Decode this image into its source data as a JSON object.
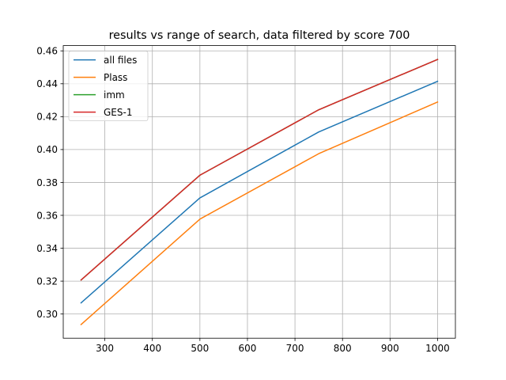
{
  "chart_data": {
    "type": "line",
    "title": "results vs range of search, data filtered by score 700",
    "xlabel": "",
    "ylabel": "",
    "x": [
      250,
      500,
      750,
      1000
    ],
    "xlim": [
      212.5,
      1037.5
    ],
    "ylim": [
      0.2853,
      0.4632
    ],
    "xticks": [
      300,
      400,
      500,
      600,
      700,
      800,
      900,
      1000
    ],
    "xtick_labels": [
      "300",
      "400",
      "500",
      "600",
      "700",
      "800",
      "900",
      "1000"
    ],
    "yticks": [
      0.3,
      0.32,
      0.34,
      0.36,
      0.38,
      0.4,
      0.42,
      0.44,
      0.46
    ],
    "ytick_labels": [
      "0.30",
      "0.32",
      "0.34",
      "0.36",
      "0.38",
      "0.40",
      "0.42",
      "0.44",
      "0.46"
    ],
    "grid": true,
    "legend_position": "top-left",
    "series": [
      {
        "name": "all files",
        "color": "#1f77b4",
        "values": [
          0.3068,
          0.3706,
          0.4107,
          0.4415
        ]
      },
      {
        "name": "Plass",
        "color": "#ff7f0e",
        "values": [
          0.2936,
          0.3577,
          0.3975,
          0.4289
        ]
      },
      {
        "name": "imm",
        "color": "#2ca02c",
        "values": [
          0.3207,
          0.3844,
          0.4242,
          0.4548
        ]
      },
      {
        "name": "GES-1",
        "color": "#d62728",
        "values": [
          0.3207,
          0.3844,
          0.4242,
          0.4548
        ]
      }
    ]
  }
}
